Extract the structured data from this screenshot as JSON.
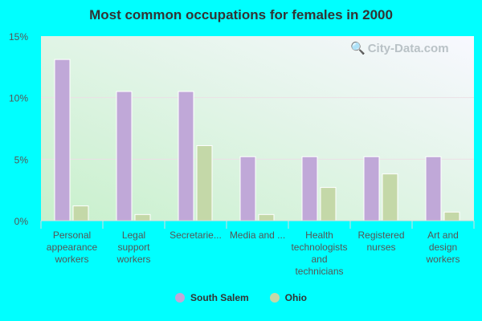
{
  "chart_data": {
    "type": "bar",
    "title": "Most common occupations for females in 2000",
    "categories": [
      [
        "Personal",
        "appearance",
        "workers"
      ],
      [
        "Legal",
        "support",
        "workers"
      ],
      [
        "Secretarie..."
      ],
      [
        "Media and ..."
      ],
      [
        "Health",
        "technologists",
        "and",
        "technicians"
      ],
      [
        "Registered",
        "nurses"
      ],
      [
        "Art and",
        "design",
        "workers"
      ]
    ],
    "series": [
      {
        "name": "South Salem",
        "color": "#c0a8d8",
        "values": [
          13.1,
          10.5,
          10.5,
          5.2,
          5.2,
          5.2,
          5.2
        ]
      },
      {
        "name": "Ohio",
        "color": "#c4d8a8",
        "values": [
          1.2,
          0.5,
          6.1,
          0.5,
          2.7,
          3.8,
          0.7
        ]
      }
    ],
    "ylim": [
      0,
      15
    ],
    "yticks": [
      "0%",
      "5%",
      "10%",
      "15%"
    ],
    "ytick_values": [
      0,
      5,
      10,
      15
    ],
    "grid": true,
    "legend": "bottom",
    "watermark": "City-Data.com"
  }
}
